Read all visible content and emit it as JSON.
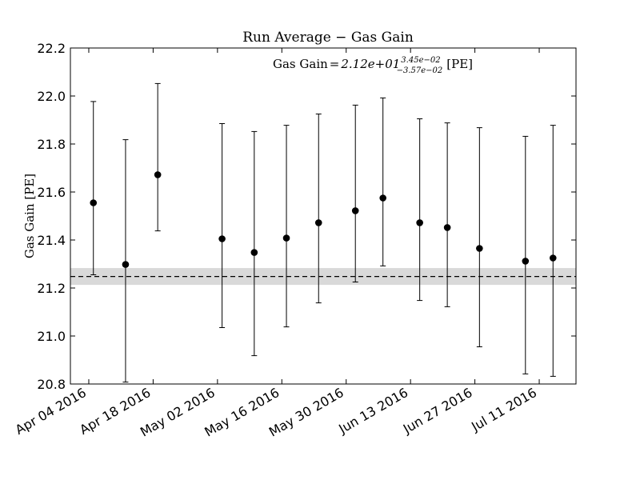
{
  "chart_data": {
    "type": "scatter",
    "title": "Run Average − Gas Gain",
    "ylabel": "Gas Gain [PE]",
    "xlabel": "",
    "ylim": [
      20.8,
      22.2
    ],
    "xlim": [
      "2016-03-31",
      "2016-07-19"
    ],
    "yticks": [
      "20.8",
      "21.0",
      "21.2",
      "21.4",
      "21.6",
      "21.8",
      "22.0",
      "22.2"
    ],
    "xticks": [
      {
        "date": "2016-04-04",
        "label": "Apr 04 2016"
      },
      {
        "date": "2016-04-18",
        "label": "Apr 18 2016"
      },
      {
        "date": "2016-05-02",
        "label": "May 02 2016"
      },
      {
        "date": "2016-05-16",
        "label": "May 16 2016"
      },
      {
        "date": "2016-05-30",
        "label": "May 30 2016"
      },
      {
        "date": "2016-06-13",
        "label": "Jun 13 2016"
      },
      {
        "date": "2016-06-27",
        "label": "Jun 27 2016"
      },
      {
        "date": "2016-07-11",
        "label": "Jul 11 2016"
      }
    ],
    "points": [
      {
        "x": "2016-04-05",
        "y": 21.555,
        "ylow": 21.255,
        "yhigh": 21.977
      },
      {
        "x": "2016-04-12",
        "y": 21.298,
        "ylow": 20.808,
        "yhigh": 21.818
      },
      {
        "x": "2016-04-19",
        "y": 21.672,
        "ylow": 21.438,
        "yhigh": 22.052
      },
      {
        "x": "2016-05-03",
        "y": 21.405,
        "ylow": 21.035,
        "yhigh": 21.885
      },
      {
        "x": "2016-05-10",
        "y": 21.348,
        "ylow": 20.918,
        "yhigh": 21.852
      },
      {
        "x": "2016-05-17",
        "y": 21.408,
        "ylow": 21.038,
        "yhigh": 21.878
      },
      {
        "x": "2016-05-24",
        "y": 21.472,
        "ylow": 21.138,
        "yhigh": 21.925
      },
      {
        "x": "2016-06-01",
        "y": 21.522,
        "ylow": 21.225,
        "yhigh": 21.962
      },
      {
        "x": "2016-06-07",
        "y": 21.575,
        "ylow": 21.292,
        "yhigh": 21.992
      },
      {
        "x": "2016-06-15",
        "y": 21.472,
        "ylow": 21.148,
        "yhigh": 21.905
      },
      {
        "x": "2016-06-21",
        "y": 21.452,
        "ylow": 21.122,
        "yhigh": 21.888
      },
      {
        "x": "2016-06-28",
        "y": 21.365,
        "ylow": 20.955,
        "yhigh": 21.868
      },
      {
        "x": "2016-07-08",
        "y": 21.312,
        "ylow": 20.842,
        "yhigh": 21.832
      },
      {
        "x": "2016-07-14",
        "y": 21.325,
        "ylow": 20.832,
        "yhigh": 21.878
      }
    ],
    "mean": 21.248,
    "band": [
      21.213,
      21.283
    ],
    "annotation": {
      "prefix": "Gas Gain",
      "value": "2.12e+01",
      "upper": "3.45e−02",
      "lower": "−3.57e−02",
      "unit": "[PE]"
    },
    "colors": {
      "points": "#000000",
      "band": "#d9d9d9",
      "mean_line": "#000000"
    },
    "grid": false,
    "legend": "none"
  }
}
